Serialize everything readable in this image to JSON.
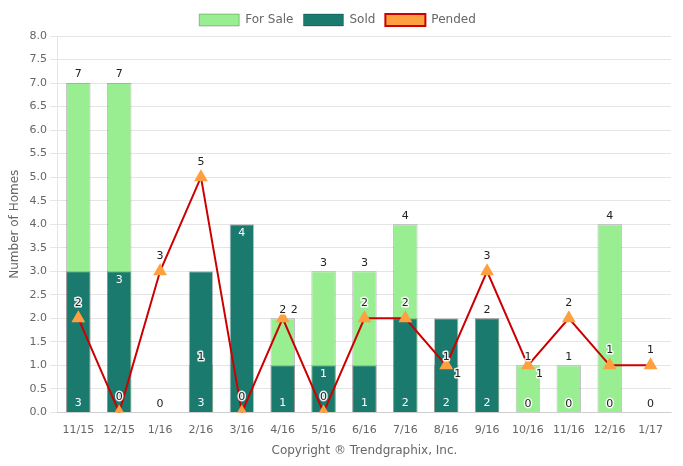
{
  "chart_data": {
    "type": "bar",
    "xlabel": "Copyright ® Trendgraphix, Inc.",
    "ylabel": "Number of Homes",
    "categories": [
      "11/15",
      "12/15",
      "1/16",
      "2/16",
      "3/16",
      "4/16",
      "5/16",
      "6/16",
      "7/16",
      "8/16",
      "9/16",
      "10/16",
      "11/16",
      "12/16",
      "1/17"
    ],
    "series": [
      {
        "name": "For Sale",
        "type": "bar",
        "color": "#98EE90",
        "values": [
          7,
          7,
          0,
          1,
          0,
          2,
          3,
          3,
          4,
          1,
          2,
          1,
          1,
          4,
          0
        ],
        "value_labels": [
          "7",
          "7",
          null,
          "1",
          null,
          "2",
          "3",
          "3",
          "4",
          "1",
          "2",
          "1",
          "1",
          "4",
          null
        ]
      },
      {
        "name": "Sold",
        "type": "bar",
        "color": "#1a7a6e",
        "values": [
          3,
          3,
          0,
          3,
          4,
          1,
          1,
          1,
          2,
          2,
          2,
          0,
          0,
          0,
          0
        ]
      },
      {
        "name": "Pended",
        "type": "line",
        "color": "#cc0000",
        "marker": "triangle",
        "colors": [
          "#FFA040",
          "#FFA040",
          "#FFA040",
          "#FFA040",
          "#FFA040",
          "#FFA040",
          "#FFA040",
          "#FFA040",
          "#FFA040",
          "#FFA040",
          "#FFA040",
          "#FFA040",
          "#FFA040",
          "#FFA040",
          "#FFA040"
        ],
        "values": [
          2,
          0,
          3,
          5,
          0,
          2,
          0,
          2,
          2,
          1,
          3,
          1,
          2,
          1,
          1
        ]
      }
    ],
    "ylim": [
      0,
      8
    ],
    "yticks": [
      {
        "value": 0,
        "label": "0.0"
      },
      0.5,
      {
        "value": 1,
        "label": "1.0"
      },
      1.5,
      {
        "value": 2,
        "label": "2.0"
      },
      2.5,
      {
        "value": 3,
        "label": "3.0"
      },
      3.5,
      {
        "value": 4,
        "label": "4.0"
      },
      4.5,
      {
        "value": 5,
        "label": "5.0"
      },
      5.5,
      {
        "value": 6,
        "label": "6.0"
      },
      6.5,
      {
        "value": 7,
        "label": "7.0"
      },
      7.5,
      {
        "value": 8,
        "label": "8.0"
      }
    ],
    "grid": "y",
    "legend": "top",
    "data_labels": true
  }
}
